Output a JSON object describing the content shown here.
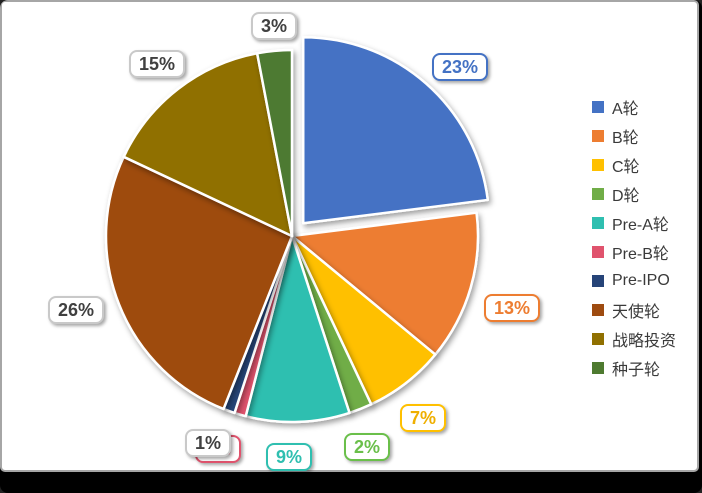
{
  "chart_data": {
    "type": "pie",
    "title": "",
    "categories": [
      "A轮",
      "B轮",
      "C轮",
      "D轮",
      "Pre-A轮",
      "Pre-B轮",
      "Pre-IPO",
      "天使轮",
      "战略投资",
      "种子轮"
    ],
    "values": [
      23,
      13,
      7,
      2,
      9,
      1,
      1,
      26,
      15,
      3
    ],
    "data_labels": [
      "23%",
      "13%",
      "7%",
      "2%",
      "9%",
      "1%",
      "1%",
      "26%",
      "15%",
      "3%"
    ],
    "colors": [
      "#4472C4",
      "#ED7D31",
      "#FFC000",
      "#70AD47",
      "#2FBFB0",
      "#E0536D",
      "#264478",
      "#9E4B10",
      "#907000",
      "#4E7A30"
    ],
    "label_text_colors": [
      "#4472C4",
      "#ED7D31",
      "#EFAF00",
      "#6ABF4A",
      "#2FBFB0",
      "#E0536D",
      "#404040",
      "#404040",
      "#404040",
      "#404040"
    ],
    "label_border_colors": [
      "#4472C4",
      "#ED7D31",
      "#FFC000",
      "#6ABF4A",
      "#2FBFB0",
      "#E0536D",
      "#C9C9C9",
      "#C9C9C9",
      "#C9C9C9",
      "#C9C9C9"
    ],
    "exploded_slice": "A轮",
    "legend_position": "right",
    "start_angle_deg": 0,
    "direction": "clockwise",
    "grid": false
  },
  "legend": {
    "items": [
      {
        "label": "A轮",
        "color": "#4472C4"
      },
      {
        "label": "B轮",
        "color": "#ED7D31"
      },
      {
        "label": "C轮",
        "color": "#FFC000"
      },
      {
        "label": "D轮",
        "color": "#70AD47"
      },
      {
        "label": "Pre-A轮",
        "color": "#2FBFB0"
      },
      {
        "label": "Pre-B轮",
        "color": "#E0536D"
      },
      {
        "label": "Pre-IPO",
        "color": "#264478"
      },
      {
        "label": "天使轮",
        "color": "#9E4B10"
      },
      {
        "label": "战略投资",
        "color": "#907000"
      },
      {
        "label": "种子轮",
        "color": "#4E7A30"
      }
    ]
  }
}
